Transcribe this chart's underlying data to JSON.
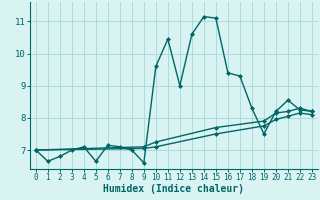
{
  "xlabel": "Humidex (Indice chaleur)",
  "bg_color": "#d9f2f2",
  "line_color": "#006666",
  "grid_color": "#aadddd",
  "xlim": [
    -0.5,
    23.5
  ],
  "ylim": [
    6.4,
    11.6
  ],
  "xticks": [
    0,
    1,
    2,
    3,
    4,
    5,
    6,
    7,
    8,
    9,
    10,
    11,
    12,
    13,
    14,
    15,
    16,
    17,
    18,
    19,
    20,
    21,
    22,
    23
  ],
  "yticks": [
    7,
    8,
    9,
    10,
    11
  ],
  "line1": {
    "x": [
      0,
      1,
      2,
      3,
      4,
      5,
      6,
      7,
      8,
      9,
      10,
      11,
      12,
      13,
      14,
      15,
      16,
      17,
      18,
      19,
      20,
      21,
      22,
      23
    ],
    "y": [
      7.0,
      6.65,
      6.8,
      7.0,
      7.1,
      6.65,
      7.15,
      7.1,
      7.0,
      6.6,
      9.6,
      10.45,
      9.0,
      10.6,
      11.15,
      11.1,
      9.4,
      9.3,
      8.3,
      7.5,
      8.2,
      8.55,
      8.25,
      8.2
    ]
  },
  "line2": {
    "x": [
      0,
      9,
      10,
      15,
      19,
      20,
      21,
      22,
      23
    ],
    "y": [
      7.0,
      7.1,
      7.25,
      7.7,
      7.9,
      8.15,
      8.2,
      8.3,
      8.2
    ]
  },
  "line3": {
    "x": [
      0,
      9,
      10,
      15,
      19,
      20,
      21,
      22,
      23
    ],
    "y": [
      7.0,
      7.05,
      7.1,
      7.5,
      7.75,
      7.95,
      8.05,
      8.15,
      8.1
    ]
  }
}
